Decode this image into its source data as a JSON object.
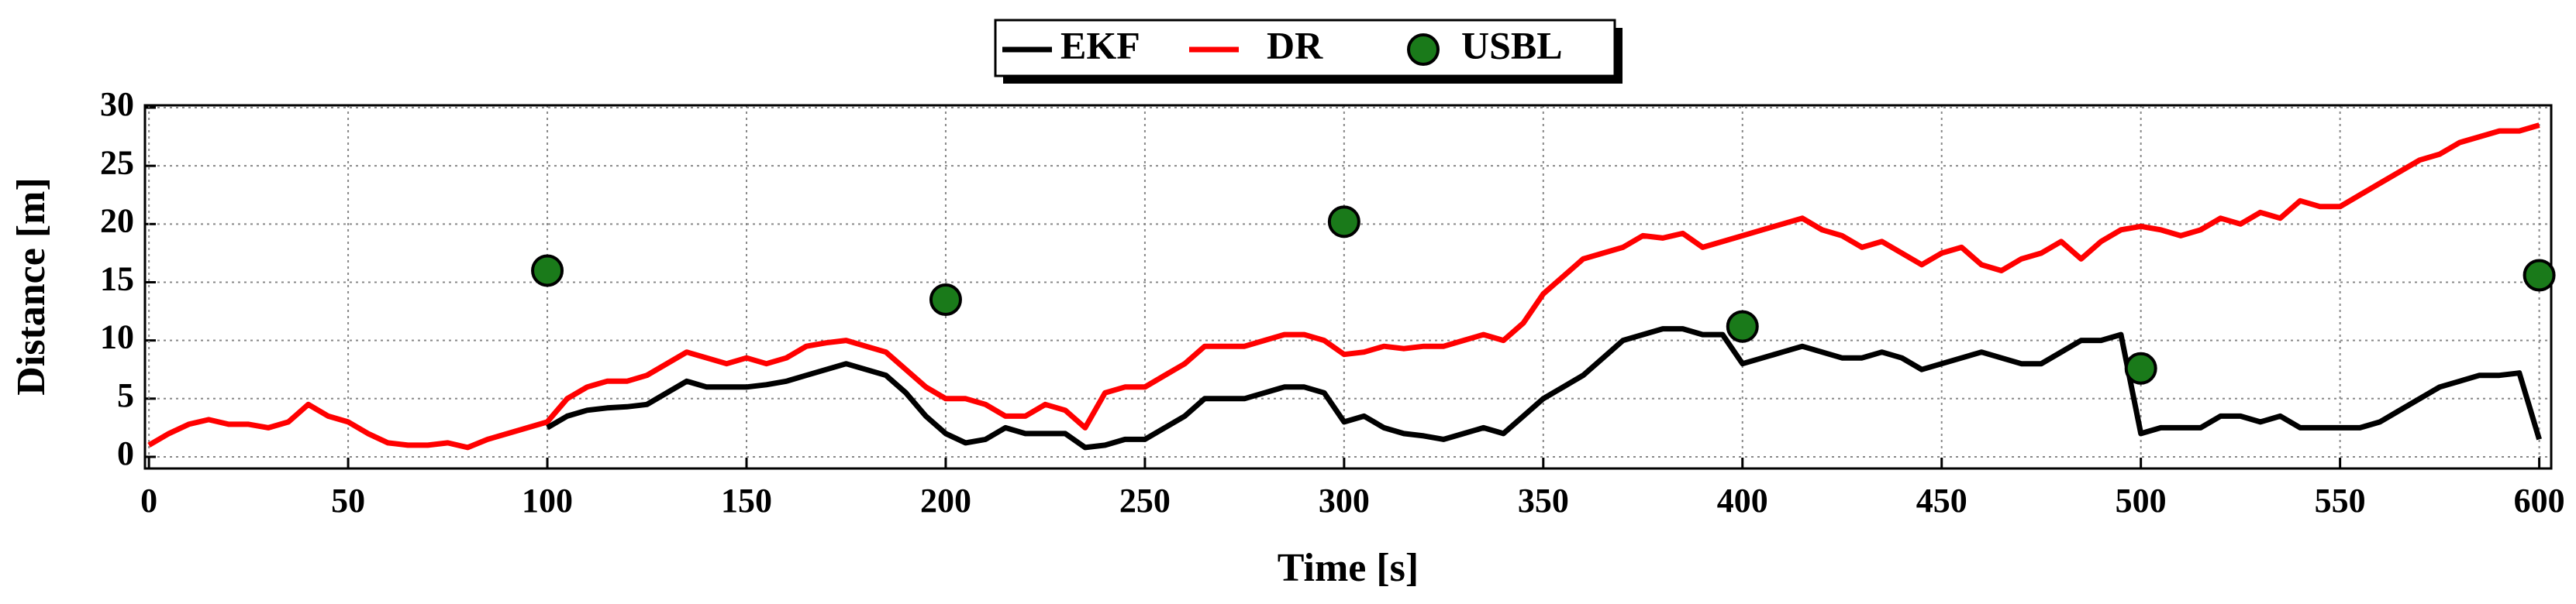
{
  "chart_data": {
    "type": "line",
    "xlabel": "Time [s]",
    "ylabel": "Distance [m]",
    "x": [
      0,
      5,
      10,
      15,
      20,
      25,
      30,
      35,
      40,
      45,
      50,
      55,
      60,
      65,
      70,
      75,
      80,
      85,
      90,
      95,
      100,
      105,
      110,
      115,
      120,
      125,
      130,
      135,
      140,
      145,
      150,
      155,
      160,
      165,
      170,
      175,
      180,
      185,
      190,
      195,
      200,
      205,
      210,
      215,
      220,
      225,
      230,
      235,
      240,
      245,
      250,
      255,
      260,
      265,
      270,
      275,
      280,
      285,
      290,
      295,
      300,
      305,
      310,
      315,
      320,
      325,
      330,
      335,
      340,
      345,
      350,
      355,
      360,
      365,
      370,
      375,
      380,
      385,
      390,
      395,
      400,
      405,
      410,
      415,
      420,
      425,
      430,
      435,
      440,
      445,
      450,
      455,
      460,
      465,
      470,
      475,
      480,
      485,
      490,
      495,
      500,
      505,
      510,
      515,
      520,
      525,
      530,
      535,
      540,
      545,
      550,
      555,
      560,
      565,
      570,
      575,
      580,
      585,
      590,
      595,
      600
    ],
    "series": [
      {
        "name": "EKF",
        "color": "#000000",
        "mode": "lines",
        "values": [
          null,
          null,
          null,
          null,
          null,
          null,
          null,
          null,
          null,
          null,
          null,
          null,
          null,
          null,
          null,
          null,
          null,
          null,
          null,
          null,
          2.5,
          3.5,
          4,
          4.2,
          4.3,
          4.5,
          5.5,
          6.5,
          6,
          6,
          6,
          6.2,
          6.5,
          7,
          7.5,
          8,
          7.5,
          7,
          5.5,
          3.5,
          2,
          1.2,
          1.5,
          2.5,
          2,
          2,
          2,
          0.8,
          1,
          1.5,
          1.5,
          2.5,
          3.5,
          5,
          5,
          5,
          5.5,
          6,
          6,
          5.5,
          3,
          3.5,
          2.5,
          2,
          1.8,
          1.5,
          2,
          2.5,
          2,
          3.5,
          5,
          6,
          7,
          8.5,
          10,
          10.5,
          11,
          11,
          10.5,
          10.5,
          8,
          8.5,
          9,
          9.5,
          9,
          8.5,
          8.5,
          9,
          8.5,
          7.5,
          8,
          8.5,
          9,
          8.5,
          8,
          8,
          9,
          10,
          10,
          10.5,
          2,
          2.5,
          2.5,
          2.5,
          3.5,
          3.5,
          3,
          3.5,
          2.5,
          2.5,
          2.5,
          2.5,
          3,
          4,
          5,
          6,
          6.5,
          7,
          7,
          7.2,
          1.5
        ]
      },
      {
        "name": "DR",
        "color": "#ff0000",
        "mode": "lines",
        "values": [
          1,
          2,
          2.8,
          3.2,
          2.8,
          2.8,
          2.5,
          3,
          4.5,
          3.5,
          3,
          2,
          1.2,
          1,
          1,
          1.2,
          0.8,
          1.5,
          2,
          2.5,
          3,
          5,
          6,
          6.5,
          6.5,
          7,
          8,
          9,
          8.5,
          8,
          8.5,
          8,
          8.5,
          9.5,
          9.8,
          10,
          9.5,
          9,
          7.5,
          6,
          5,
          5,
          4.5,
          3.5,
          3.5,
          4.5,
          4,
          2.5,
          5.5,
          6,
          6,
          7,
          8,
          9.5,
          9.5,
          9.5,
          10,
          10.5,
          10.5,
          10,
          8.8,
          9,
          9.5,
          9.3,
          9.5,
          9.5,
          10,
          10.5,
          10,
          11.5,
          14,
          15.5,
          17,
          17.5,
          18,
          19,
          18.8,
          19.2,
          18,
          18.5,
          19,
          19.5,
          20,
          20.5,
          19.5,
          19,
          18,
          18.5,
          17.5,
          16.5,
          17.5,
          18,
          16.5,
          16,
          17,
          17.5,
          18.5,
          17,
          18.5,
          19.5,
          19.8,
          19.5,
          19,
          19.5,
          20.5,
          20,
          21,
          20.5,
          22,
          21.5,
          21.5,
          22.5,
          23.5,
          24.5,
          25.5,
          26,
          27,
          27.5,
          28,
          28,
          28.5
        ]
      },
      {
        "name": "USBL",
        "color": "#1a7a1a",
        "mode": "markers",
        "x": [
          100,
          200,
          300,
          400,
          500,
          600
        ],
        "values": [
          16,
          13.5,
          20.2,
          11.2,
          7.6,
          15.6
        ]
      }
    ],
    "xlim": [
      -1,
      603
    ],
    "ylim": [
      -1,
      30.2
    ],
    "xticks": [
      0,
      50,
      100,
      150,
      200,
      250,
      300,
      350,
      400,
      450,
      500,
      550,
      600
    ],
    "yticks": [
      0,
      5,
      10,
      15,
      20,
      25,
      30
    ],
    "grid": true
  }
}
